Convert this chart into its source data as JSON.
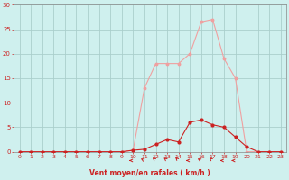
{
  "hours": [
    0,
    1,
    2,
    3,
    4,
    5,
    6,
    7,
    8,
    9,
    10,
    11,
    12,
    13,
    14,
    15,
    16,
    17,
    18,
    19,
    20,
    21,
    22,
    23
  ],
  "rafales": [
    0,
    0,
    0,
    0,
    0,
    0,
    0,
    0,
    0,
    0,
    0.3,
    13,
    18,
    18,
    18,
    20,
    26.5,
    27,
    19,
    15,
    0,
    0,
    0,
    0
  ],
  "vent_moyen": [
    0,
    0,
    0,
    0,
    0,
    0,
    0,
    0,
    0,
    0,
    0.3,
    0.5,
    1.5,
    2.5,
    2,
    6,
    6.5,
    5.5,
    5,
    3,
    1,
    0,
    0,
    0
  ],
  "arrow_hours": [
    10,
    11,
    12,
    13,
    14,
    15,
    16,
    17,
    18,
    19
  ],
  "ylim": [
    0,
    30
  ],
  "xlim": [
    -0.5,
    23.5
  ],
  "yticks": [
    0,
    5,
    10,
    15,
    20,
    25,
    30
  ],
  "xticks": [
    0,
    1,
    2,
    3,
    4,
    5,
    6,
    7,
    8,
    9,
    10,
    11,
    12,
    13,
    14,
    15,
    16,
    17,
    18,
    19,
    20,
    21,
    22,
    23
  ],
  "bg_color": "#cff0ee",
  "grid_color": "#aacfcc",
  "rafales_color": "#f0a0a0",
  "vent_color": "#cc2222",
  "xlabel": "Vent moyen/en rafales ( km/h )",
  "xlabel_color": "#cc2222",
  "tick_color": "#cc2222"
}
